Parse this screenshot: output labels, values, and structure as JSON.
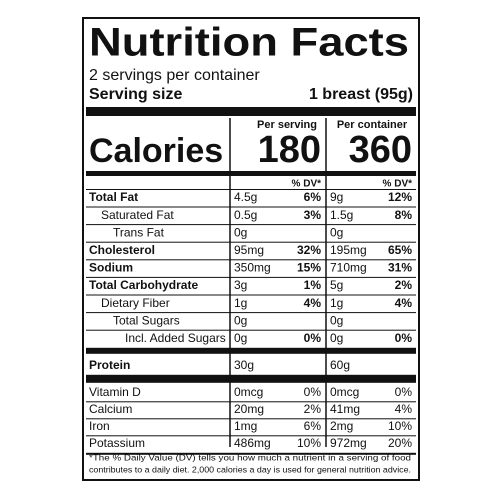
{
  "title": "Nutrition Facts",
  "servings": "2 servings per container",
  "serving_size": {
    "label": "Serving size",
    "value": "1 breast (95g)"
  },
  "columns": [
    "Per serving",
    "Per container"
  ],
  "calories": {
    "label": "Calories",
    "values": [
      "180",
      "360"
    ]
  },
  "dv_header": [
    "% DV*",
    "% DV*"
  ],
  "nutrients": [
    {
      "name": "Total Fat",
      "bold": true,
      "level": 0,
      "serving": "4.5g",
      "serving_dv": "6%",
      "container": "9g",
      "container_dv": "12%"
    },
    {
      "name": "Saturated Fat",
      "bold": false,
      "level": 1,
      "serving": "0.5g",
      "serving_dv": "3%",
      "container": "1.5g",
      "container_dv": "8%"
    },
    {
      "name": "Trans Fat",
      "bold": false,
      "level": 2,
      "serving": "0g",
      "container": "0g"
    },
    {
      "name": "Cholesterol",
      "bold": true,
      "level": 0,
      "serving": "95mg",
      "serving_dv": "32%",
      "container": "195mg",
      "container_dv": "65%"
    },
    {
      "name": "Sodium",
      "bold": true,
      "level": 0,
      "serving": "350mg",
      "serving_dv": "15%",
      "container": "710mg",
      "container_dv": "31%"
    },
    {
      "name": "Total Carbohydrate",
      "bold": true,
      "level": 0,
      "serving": "3g",
      "serving_dv": "1%",
      "container": "5g",
      "container_dv": "2%"
    },
    {
      "name": "Dietary Fiber",
      "bold": false,
      "level": 1,
      "serving": "1g",
      "serving_dv": "4%",
      "container": "1g",
      "container_dv": "4%"
    },
    {
      "name": "Total Sugars",
      "bold": false,
      "level": 2,
      "serving": "0g",
      "container": "0g"
    },
    {
      "name": "Incl. Added Sugars",
      "bold": false,
      "level": 3,
      "serving": "0g",
      "serving_dv": "0%",
      "container": "0g",
      "container_dv": "0%"
    }
  ],
  "protein": {
    "name": "Protein",
    "serving": "30g",
    "container": "60g"
  },
  "minerals": [
    {
      "name": "Vitamin D",
      "serving": "0mcg",
      "serving_dv": "0%",
      "container": "0mcg",
      "container_dv": "0%"
    },
    {
      "name": "Calcium",
      "serving": "20mg",
      "serving_dv": "2%",
      "container": "41mg",
      "container_dv": "4%"
    },
    {
      "name": "Iron",
      "serving": "1mg",
      "serving_dv": "6%",
      "container": "2mg",
      "container_dv": "10%"
    },
    {
      "name": "Potassium",
      "serving": "486mg",
      "serving_dv": "10%",
      "container": "972mg",
      "container_dv": "20%"
    }
  ],
  "footnote": [
    "*The % Daily Value (DV) tells you how much a nutrient in a serving of food",
    "contributes to a daily diet. 2,000 calories a day is used for general nutrition advice."
  ]
}
